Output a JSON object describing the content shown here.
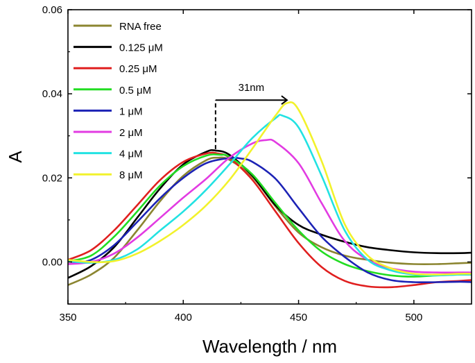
{
  "chart_data": {
    "type": "line",
    "title": "",
    "xlabel": "Wavelength / nm",
    "ylabel": "A",
    "xlim": [
      350,
      525
    ],
    "ylim": [
      -0.01,
      0.06
    ],
    "xticks": [
      350,
      400,
      450,
      500
    ],
    "xtick_labels": [
      "350",
      "400",
      "450",
      "500"
    ],
    "yticks": [
      0.0,
      0.02,
      0.04,
      0.06
    ],
    "ytick_labels": [
      "0.00",
      "0.02",
      "0.04",
      "0.06"
    ],
    "grid": false,
    "legend_position": "top-left",
    "annotation": {
      "text": "31nm",
      "from_x": 414,
      "to_x": 445,
      "y": 0.0385,
      "baseline_y": 0.0265
    },
    "series": [
      {
        "name": "RNA free",
        "color": "#8b8530",
        "x": [
          350,
          360,
          370,
          380,
          390,
          400,
          410,
          415,
          420,
          430,
          440,
          450,
          460,
          470,
          480,
          490,
          500,
          510,
          520,
          525
        ],
        "y": [
          -0.0055,
          -0.003,
          0.001,
          0.0075,
          0.0145,
          0.0205,
          0.0242,
          0.0248,
          0.0243,
          0.0202,
          0.0132,
          0.007,
          0.0035,
          0.0015,
          0.0005,
          -0.0002,
          -0.0005,
          -0.0005,
          -0.0003,
          -0.0002
        ]
      },
      {
        "name": "0.125 μM",
        "color": "#000000",
        "x": [
          350,
          360,
          370,
          380,
          390,
          400,
          410,
          414,
          420,
          430,
          440,
          450,
          460,
          470,
          480,
          490,
          500,
          510,
          520,
          525
        ],
        "y": [
          -0.0038,
          -0.001,
          0.0035,
          0.0105,
          0.0175,
          0.0232,
          0.0262,
          0.0265,
          0.0255,
          0.0205,
          0.0135,
          0.0088,
          0.0065,
          0.0048,
          0.0035,
          0.0028,
          0.0023,
          0.0021,
          0.0021,
          0.0022
        ]
      },
      {
        "name": "0.25 μM",
        "color": "#e01f1f",
        "x": [
          350,
          360,
          370,
          380,
          390,
          400,
          410,
          415,
          420,
          430,
          440,
          450,
          460,
          470,
          480,
          490,
          500,
          510,
          520,
          525
        ],
        "y": [
          0.0005,
          0.0028,
          0.0075,
          0.0135,
          0.0195,
          0.0238,
          0.0258,
          0.0258,
          0.0248,
          0.0195,
          0.012,
          0.0045,
          -0.0012,
          -0.0045,
          -0.0058,
          -0.006,
          -0.0055,
          -0.0048,
          -0.0045,
          -0.0043
        ]
      },
      {
        "name": "0.5 μM",
        "color": "#22dd22",
        "x": [
          350,
          360,
          370,
          380,
          390,
          400,
          410,
          416,
          420,
          430,
          440,
          450,
          460,
          470,
          480,
          490,
          500,
          510,
          520,
          525
        ],
        "y": [
          0.0002,
          0.0015,
          0.006,
          0.012,
          0.0182,
          0.0228,
          0.0253,
          0.0255,
          0.025,
          0.0208,
          0.014,
          0.0075,
          0.0025,
          -0.0005,
          -0.0022,
          -0.0032,
          -0.0035,
          -0.0032,
          -0.003,
          -0.003
        ]
      },
      {
        "name": "1 μM",
        "color": "#1c22b5",
        "x": [
          350,
          360,
          370,
          380,
          390,
          400,
          410,
          420,
          425,
          430,
          440,
          450,
          460,
          470,
          480,
          490,
          500,
          510,
          520,
          525
        ],
        "y": [
          -0.0005,
          0.0005,
          0.004,
          0.0095,
          0.0152,
          0.02,
          0.0235,
          0.0247,
          0.0246,
          0.0238,
          0.0198,
          0.0128,
          0.006,
          0.0012,
          -0.0025,
          -0.0043,
          -0.0048,
          -0.0048,
          -0.0047,
          -0.0048
        ]
      },
      {
        "name": "2 μM",
        "color": "#e23be2",
        "x": [
          350,
          360,
          370,
          380,
          390,
          400,
          410,
          420,
          430,
          436,
          440,
          450,
          460,
          470,
          480,
          490,
          500,
          510,
          520,
          525
        ],
        "y": [
          -0.0005,
          0.0,
          0.002,
          0.0058,
          0.0105,
          0.0153,
          0.0198,
          0.0248,
          0.0282,
          0.029,
          0.0285,
          0.0235,
          0.014,
          0.005,
          0.0005,
          -0.0015,
          -0.0023,
          -0.0025,
          -0.0025,
          -0.0025
        ]
      },
      {
        "name": "4 μM",
        "color": "#22e2e2",
        "x": [
          350,
          360,
          370,
          380,
          390,
          400,
          410,
          420,
          430,
          440,
          443,
          450,
          460,
          470,
          480,
          490,
          500,
          510,
          520,
          525
        ],
        "y": [
          0.0002,
          -0.0002,
          0.0005,
          0.003,
          0.0075,
          0.012,
          0.0172,
          0.0232,
          0.0295,
          0.0342,
          0.0348,
          0.032,
          0.0205,
          0.0075,
          0.0005,
          -0.002,
          -0.003,
          -0.0032,
          -0.003,
          -0.003
        ]
      },
      {
        "name": "8 μM",
        "color": "#f2f22c",
        "x": [
          350,
          360,
          370,
          380,
          390,
          400,
          410,
          420,
          430,
          440,
          445,
          450,
          460,
          470,
          480,
          490,
          500,
          510,
          520,
          525
        ],
        "y": [
          0.0005,
          0.0,
          0.0002,
          0.002,
          0.005,
          0.0088,
          0.0135,
          0.0195,
          0.027,
          0.0348,
          0.0378,
          0.0362,
          0.024,
          0.009,
          0.0015,
          -0.0015,
          -0.0028,
          -0.003,
          -0.0028,
          -0.0028
        ]
      }
    ]
  }
}
